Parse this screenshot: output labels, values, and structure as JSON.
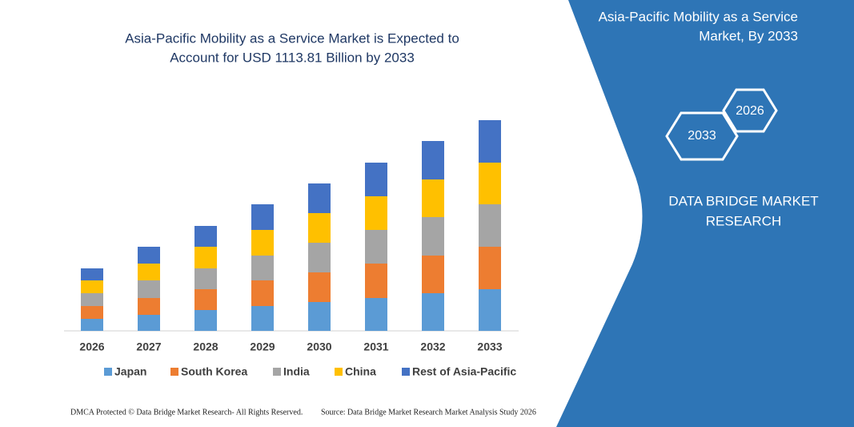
{
  "chart_data": {
    "type": "stacked-bar",
    "title": [
      "Asia-Pacific Mobility as a Service Market is Expected to",
      "Account for USD 1113.81 Billion by 2033"
    ],
    "categories": [
      "2026",
      "2027",
      "2028",
      "2029",
      "2030",
      "2031",
      "2032",
      "2033"
    ],
    "series": [
      {
        "name": "Japan",
        "color": "#5b9bd5",
        "values": [
          15,
          20,
          26,
          31,
          36,
          41,
          47,
          52
        ]
      },
      {
        "name": "South Korea",
        "color": "#ed7d31",
        "values": [
          16,
          21,
          26,
          32,
          37,
          43,
          47,
          53
        ]
      },
      {
        "name": "India",
        "color": "#a5a5a5",
        "values": [
          16,
          22,
          26,
          31,
          37,
          42,
          48,
          53
        ]
      },
      {
        "name": "China",
        "color": "#ffc000",
        "values": [
          16,
          21,
          27,
          32,
          37,
          42,
          47,
          52
        ]
      },
      {
        "name": "Rest of Asia-Pacific",
        "color": "#4472c4",
        "values": [
          15,
          21,
          26,
          32,
          37,
          42,
          48,
          53
        ]
      }
    ]
  },
  "panel": {
    "title": [
      "Asia-Pacific Mobility as a Service",
      "Market, By 2033"
    ],
    "hexagons": [
      "2026",
      "2033"
    ],
    "brand": [
      "DATA BRIDGE MARKET",
      "RESEARCH"
    ]
  },
  "footer": {
    "left": "DMCA Protected © Data Bridge Market Research-  All Rights Reserved.",
    "right": "Source: Data Bridge Market Research  Market Analysis Study 2026"
  }
}
